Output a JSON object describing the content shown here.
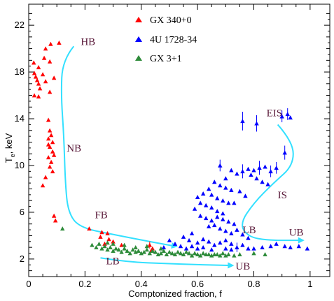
{
  "chart_data": {
    "type": "scatter",
    "xlabel": "Comptonized fraction, f",
    "ylabel_main": "T",
    "ylabel_sub": "e",
    "ylabel_rest": ",  keV",
    "xlim": [
      0,
      1.07
    ],
    "ylim": [
      0.5,
      23.8
    ],
    "x_ticks": [
      "0",
      "0.2",
      "0.4",
      "0.6",
      "0.8",
      "1"
    ],
    "x_tick_values": [
      0,
      0.2,
      0.4,
      0.6,
      0.8,
      1.0
    ],
    "y_ticks": [
      "2",
      "6",
      "10",
      "14",
      "18",
      "22"
    ],
    "y_tick_values": [
      2,
      6,
      10,
      14,
      18,
      22
    ],
    "legend_position": "top-center",
    "series": [
      {
        "name": "GX 340+0",
        "color": "#ff0000",
        "marker": "triangle",
        "points": [
          [
            0.018,
            18.8
          ],
          [
            0.035,
            18.4
          ],
          [
            0.055,
            19.2
          ],
          [
            0.075,
            18.9
          ],
          [
            0.06,
            20.0
          ],
          [
            0.078,
            20.4
          ],
          [
            0.108,
            20.5
          ],
          [
            0.02,
            17.9
          ],
          [
            0.025,
            17.6
          ],
          [
            0.03,
            17.3
          ],
          [
            0.035,
            17.0
          ],
          [
            0.04,
            16.6
          ],
          [
            0.02,
            16.0
          ],
          [
            0.035,
            15.9
          ],
          [
            0.05,
            17.8
          ],
          [
            0.06,
            17.2
          ],
          [
            0.075,
            16.3
          ],
          [
            0.09,
            17.5
          ],
          [
            0.07,
            13.9
          ],
          [
            0.075,
            13.0
          ],
          [
            0.08,
            12.6
          ],
          [
            0.07,
            12.3
          ],
          [
            0.085,
            12.0
          ],
          [
            0.075,
            11.6
          ],
          [
            0.085,
            11.2
          ],
          [
            0.07,
            10.7
          ],
          [
            0.08,
            10.3
          ],
          [
            0.075,
            9.9
          ],
          [
            0.085,
            9.5
          ],
          [
            0.07,
            11.8
          ],
          [
            0.09,
            10.9
          ],
          [
            0.06,
            9.0
          ],
          [
            0.05,
            8.3
          ],
          [
            0.09,
            5.7
          ],
          [
            0.095,
            5.3
          ],
          [
            0.215,
            4.6
          ],
          [
            0.26,
            4.3
          ],
          [
            0.255,
            3.9
          ],
          [
            0.28,
            4.2
          ],
          [
            0.285,
            3.7
          ],
          [
            0.3,
            3.5
          ],
          [
            0.27,
            3.3
          ],
          [
            0.33,
            3.2
          ],
          [
            0.43,
            3.2
          ],
          [
            0.435,
            2.7
          ],
          [
            0.44,
            2.9
          ]
        ]
      },
      {
        "name": "4U 1728-34",
        "color": "#0000ff",
        "marker": "triangle",
        "points": [
          [
            0.76,
            13.8
          ],
          [
            0.81,
            13.6
          ],
          [
            0.9,
            14.2
          ],
          [
            0.92,
            14.4
          ],
          [
            0.93,
            14.1
          ],
          [
            0.91,
            11.1
          ],
          [
            0.68,
            10.0
          ],
          [
            0.72,
            9.6
          ],
          [
            0.74,
            9.3
          ],
          [
            0.76,
            9.5
          ],
          [
            0.78,
            9.7
          ],
          [
            0.8,
            9.6
          ],
          [
            0.82,
            9.8
          ],
          [
            0.84,
            9.9
          ],
          [
            0.86,
            9.5
          ],
          [
            0.88,
            9.8
          ],
          [
            0.79,
            9.2
          ],
          [
            0.81,
            8.9
          ],
          [
            0.83,
            8.6
          ],
          [
            0.85,
            8.4
          ],
          [
            0.7,
            8.9
          ],
          [
            0.66,
            8.6
          ],
          [
            0.68,
            8.3
          ],
          [
            0.7,
            8.1
          ],
          [
            0.72,
            7.9
          ],
          [
            0.64,
            8.0
          ],
          [
            0.62,
            7.6
          ],
          [
            0.6,
            7.3
          ],
          [
            0.65,
            7.5
          ],
          [
            0.67,
            7.2
          ],
          [
            0.69,
            7.0
          ],
          [
            0.71,
            6.8
          ],
          [
            0.63,
            6.6
          ],
          [
            0.65,
            6.4
          ],
          [
            0.67,
            6.1
          ],
          [
            0.69,
            5.9
          ],
          [
            0.61,
            5.7
          ],
          [
            0.63,
            5.5
          ],
          [
            0.65,
            5.3
          ],
          [
            0.67,
            5.6
          ],
          [
            0.69,
            5.4
          ],
          [
            0.71,
            5.2
          ],
          [
            0.73,
            5.0
          ],
          [
            0.66,
            4.9
          ],
          [
            0.68,
            4.6
          ],
          [
            0.7,
            4.4
          ],
          [
            0.72,
            4.2
          ],
          [
            0.74,
            4.5
          ],
          [
            0.76,
            4.1
          ],
          [
            0.78,
            3.8
          ],
          [
            0.64,
            4.8
          ],
          [
            0.58,
            4.2
          ],
          [
            0.55,
            3.9
          ],
          [
            0.57,
            3.6
          ],
          [
            0.6,
            3.4
          ],
          [
            0.62,
            3.7
          ],
          [
            0.64,
            3.5
          ],
          [
            0.66,
            3.2
          ],
          [
            0.68,
            3.4
          ],
          [
            0.7,
            3.6
          ],
          [
            0.72,
            3.3
          ],
          [
            0.5,
            3.6
          ],
          [
            0.52,
            3.3
          ],
          [
            0.54,
            3.1
          ],
          [
            0.48,
            3.0
          ],
          [
            0.56,
            2.9
          ],
          [
            0.6,
            2.9
          ],
          [
            0.65,
            2.8
          ],
          [
            0.7,
            2.9
          ],
          [
            0.74,
            3.0
          ],
          [
            0.78,
            2.9
          ],
          [
            0.8,
            2.9
          ],
          [
            0.83,
            3.0
          ],
          [
            0.86,
            3.1
          ],
          [
            0.88,
            3.3
          ],
          [
            0.91,
            3.1
          ],
          [
            0.93,
            3.0
          ],
          [
            0.96,
            3.1
          ],
          [
            0.99,
            2.9
          ],
          [
            0.76,
            3.2
          ],
          [
            0.72,
            2.8
          ],
          [
            0.62,
            3.0
          ],
          [
            0.58,
            3.1
          ],
          [
            0.75,
            7.8
          ],
          [
            0.77,
            7.4
          ],
          [
            0.73,
            6.8
          ],
          [
            0.59,
            6.3
          ],
          [
            0.61,
            6.8
          ]
        ]
      },
      {
        "name": "GX 3+1",
        "color": "#2e8b3a",
        "marker": "triangle",
        "points": [
          [
            0.12,
            4.6
          ],
          [
            0.225,
            3.2
          ],
          [
            0.24,
            3.0
          ],
          [
            0.25,
            3.3
          ],
          [
            0.26,
            2.9
          ],
          [
            0.27,
            3.1
          ],
          [
            0.28,
            2.8
          ],
          [
            0.29,
            3.0
          ],
          [
            0.3,
            2.7
          ],
          [
            0.31,
            2.9
          ],
          [
            0.32,
            2.8
          ],
          [
            0.33,
            2.6
          ],
          [
            0.34,
            2.9
          ],
          [
            0.35,
            2.7
          ],
          [
            0.36,
            2.5
          ],
          [
            0.37,
            2.8
          ],
          [
            0.38,
            2.6
          ],
          [
            0.39,
            2.7
          ],
          [
            0.4,
            2.5
          ],
          [
            0.41,
            2.6
          ],
          [
            0.42,
            2.8
          ],
          [
            0.43,
            2.5
          ],
          [
            0.44,
            2.7
          ],
          [
            0.45,
            2.6
          ],
          [
            0.46,
            2.4
          ],
          [
            0.47,
            2.5
          ],
          [
            0.48,
            2.7
          ],
          [
            0.49,
            2.4
          ],
          [
            0.5,
            2.6
          ],
          [
            0.51,
            2.5
          ],
          [
            0.52,
            2.4
          ],
          [
            0.53,
            2.6
          ],
          [
            0.54,
            2.5
          ],
          [
            0.55,
            2.4
          ],
          [
            0.56,
            2.6
          ],
          [
            0.57,
            2.5
          ],
          [
            0.58,
            2.3
          ],
          [
            0.59,
            2.5
          ],
          [
            0.6,
            2.4
          ],
          [
            0.61,
            2.3
          ],
          [
            0.62,
            2.5
          ],
          [
            0.63,
            2.4
          ],
          [
            0.64,
            2.4
          ],
          [
            0.65,
            2.3
          ],
          [
            0.66,
            2.4
          ],
          [
            0.67,
            2.4
          ],
          [
            0.68,
            2.3
          ],
          [
            0.69,
            2.5
          ],
          [
            0.7,
            2.3
          ],
          [
            0.71,
            2.4
          ],
          [
            0.73,
            2.3
          ],
          [
            0.75,
            2.4
          ],
          [
            0.8,
            2.5
          ],
          [
            0.84,
            2.4
          ],
          [
            0.28,
            3.4
          ],
          [
            0.3,
            3.3
          ],
          [
            0.34,
            3.2
          ],
          [
            0.42,
            3.1
          ],
          [
            0.38,
            3.0
          ],
          [
            0.47,
            2.9
          ]
        ]
      }
    ],
    "error_bars": [
      {
        "series": "4U 1728-34",
        "x": 0.76,
        "y": 13.8,
        "dy": 0.8
      },
      {
        "series": "4U 1728-34",
        "x": 0.81,
        "y": 13.6,
        "dy": 0.7
      },
      {
        "series": "4U 1728-34",
        "x": 0.9,
        "y": 14.2,
        "dy": 0.5
      },
      {
        "series": "4U 1728-34",
        "x": 0.92,
        "y": 14.4,
        "dy": 0.5
      },
      {
        "series": "4U 1728-34",
        "x": 0.91,
        "y": 11.1,
        "dy": 0.6
      },
      {
        "series": "4U 1728-34",
        "x": 0.68,
        "y": 10.0,
        "dy": 0.5
      },
      {
        "series": "4U 1728-34",
        "x": 0.76,
        "y": 9.5,
        "dy": 0.6
      },
      {
        "series": "4U 1728-34",
        "x": 0.82,
        "y": 9.8,
        "dy": 0.6
      },
      {
        "series": "4U 1728-34",
        "x": 0.86,
        "y": 9.5,
        "dy": 0.5
      },
      {
        "series": "4U 1728-34",
        "x": 0.88,
        "y": 9.8,
        "dy": 0.5
      },
      {
        "series": "4U 1728-34",
        "x": 0.74,
        "y": 3.0,
        "dy": 0.4
      },
      {
        "series": "GX 340+0",
        "x": 0.43,
        "y": 3.2,
        "dy": 0.3
      }
    ],
    "arrows": [
      {
        "color": "#33e0ff",
        "points": [
          [
            0.16,
            20.2
          ],
          [
            0.12,
            19.0
          ],
          [
            0.115,
            16.0
          ],
          [
            0.125,
            12.5
          ],
          [
            0.13,
            8.5
          ],
          [
            0.14,
            6.0
          ],
          [
            0.18,
            4.7
          ],
          [
            0.3,
            4.1
          ],
          [
            0.45,
            3.4
          ],
          [
            0.52,
            3.1
          ]
        ]
      },
      {
        "color": "#33e0ff",
        "points": [
          [
            0.255,
            2.1
          ],
          [
            0.35,
            1.75
          ],
          [
            0.5,
            1.6
          ],
          [
            0.62,
            1.5
          ],
          [
            0.72,
            1.45
          ]
        ]
      },
      {
        "color": "#33e0ff",
        "points": [
          [
            0.885,
            13.5
          ],
          [
            0.94,
            12.0
          ],
          [
            0.94,
            10.0
          ],
          [
            0.87,
            8.5
          ],
          [
            0.8,
            6.8
          ],
          [
            0.75,
            5.0
          ],
          [
            0.78,
            3.9
          ],
          [
            0.85,
            3.6
          ],
          [
            0.95,
            3.6
          ],
          [
            0.97,
            3.6
          ]
        ]
      }
    ],
    "annotations": [
      {
        "text": "HB",
        "x": 0.185,
        "y": 20.3
      },
      {
        "text": "NB",
        "x": 0.135,
        "y": 11.2
      },
      {
        "text": "FB",
        "x": 0.235,
        "y": 5.5
      },
      {
        "text": "LB",
        "x": 0.275,
        "y": 1.55
      },
      {
        "text": "UB",
        "x": 0.735,
        "y": 1.1
      },
      {
        "text": "EIS",
        "x": 0.845,
        "y": 14.2
      },
      {
        "text": "IS",
        "x": 0.885,
        "y": 7.2
      },
      {
        "text": "LB",
        "x": 0.76,
        "y": 4.2
      },
      {
        "text": "UB",
        "x": 0.925,
        "y": 4.0
      }
    ]
  }
}
